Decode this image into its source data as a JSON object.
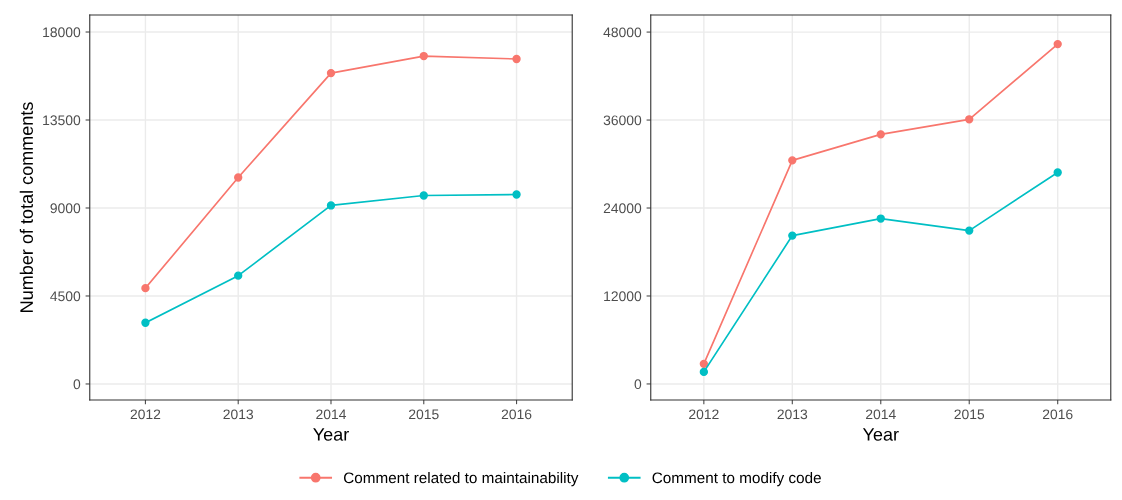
{
  "chart_data": [
    {
      "type": "line",
      "categories": [
        "2012",
        "2013",
        "2014",
        "2015",
        "2016"
      ],
      "xlabel": "Year",
      "ylabel": "Number of total comments",
      "ylim": [
        -820,
        18870
      ],
      "yticks": [
        0,
        4500,
        9000,
        13500,
        18000
      ],
      "grid": true,
      "marker": "circle",
      "line_style": "solid",
      "legend": "bottom",
      "series": [
        {
          "name": "Comment related to maintainability",
          "color": "#f8766d",
          "values": [
            4900,
            10560,
            15900,
            16770,
            16620
          ]
        },
        {
          "name": "Comment to modify code",
          "color": "#00bfc4",
          "values": [
            3130,
            5540,
            9130,
            9640,
            9690
          ]
        }
      ]
    },
    {
      "type": "line",
      "categories": [
        "2012",
        "2013",
        "2014",
        "2015",
        "2016"
      ],
      "xlabel": "Year",
      "ylim": [
        -2190,
        50330
      ],
      "yticks": [
        0,
        12000,
        24000,
        36000,
        48000
      ],
      "grid": true,
      "marker": "circle",
      "line_style": "solid",
      "series": [
        {
          "color": "#f8766d",
          "values": [
            2740,
            30500,
            34050,
            36100,
            46360
          ]
        },
        {
          "color": "#00bfc4",
          "values": [
            1640,
            20240,
            22560,
            20920,
            28850
          ]
        }
      ]
    }
  ]
}
